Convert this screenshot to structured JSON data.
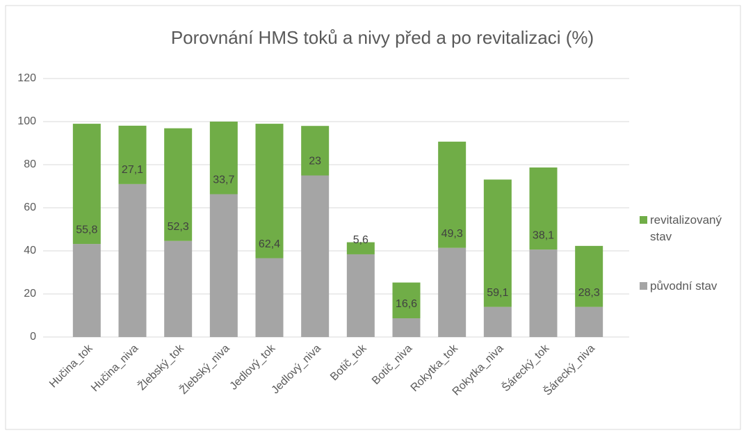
{
  "chart_data": {
    "type": "stacked_bar",
    "title": "Porovnání HMS toků a nivy před a po revitalizaci (%)",
    "categories": [
      "Hučina_tok",
      "Hučina_niva",
      "Žlebský_tok",
      "Žlebský_niva",
      "Jedlový_tok",
      "Jedlový_niva",
      "Botič_tok",
      "Botič_niva",
      "Rokytka_tok",
      "Rokytka_niva",
      "Šárecký_tok",
      "Šárecký_niva"
    ],
    "series": [
      {
        "name": "původní stav",
        "color": "#a5a5a5",
        "values": [
          43.2,
          71,
          44.6,
          66.3,
          36.6,
          75,
          38.4,
          8.7,
          41.4,
          14,
          40.6,
          14
        ]
      },
      {
        "name": "revitalizovaný stav",
        "color": "#70ad47",
        "values": [
          55.8,
          27.1,
          52.3,
          33.7,
          62.4,
          23,
          5.6,
          16.6,
          49.3,
          59.1,
          38.1,
          28.3
        ],
        "value_labels": [
          "55,8",
          "27,1",
          "52,3",
          "33,7",
          "62,4",
          "23",
          "5,6",
          "16,6",
          "49,3",
          "59,1",
          "38,1",
          "28,3"
        ]
      }
    ],
    "ylim": [
      0,
      120
    ],
    "yticks": [
      0,
      20,
      40,
      60,
      80,
      100,
      120
    ],
    "grid": true,
    "legend": "right"
  }
}
